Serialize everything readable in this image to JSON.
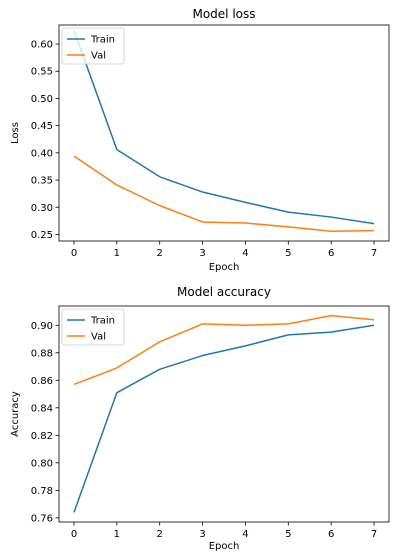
{
  "chart_data": [
    {
      "type": "line",
      "title": "Model loss",
      "xlabel": "Epoch",
      "ylabel": "Loss",
      "x": [
        0,
        1,
        2,
        3,
        4,
        5,
        6,
        7
      ],
      "xlim": [
        -0.35,
        7.35
      ],
      "ylim": [
        0.238,
        0.635
      ],
      "yticks": [
        "0.25",
        "0.30",
        "0.35",
        "0.40",
        "0.45",
        "0.50",
        "0.55",
        "0.60"
      ],
      "xticks": [
        "0",
        "1",
        "2",
        "3",
        "4",
        "5",
        "6",
        "7"
      ],
      "legend_position": "top-left",
      "grid": false,
      "series": [
        {
          "name": "Train",
          "color": "#1f77b4",
          "values": [
            0.625,
            0.406,
            0.356,
            0.328,
            0.309,
            0.291,
            0.282,
            0.27
          ]
        },
        {
          "name": "Val",
          "color": "#ff7f0e",
          "values": [
            0.394,
            0.341,
            0.303,
            0.273,
            0.271,
            0.264,
            0.256,
            0.257
          ]
        }
      ]
    },
    {
      "type": "line",
      "title": "Model accuracy",
      "xlabel": "Epoch",
      "ylabel": "Accuracy",
      "x": [
        0,
        1,
        2,
        3,
        4,
        5,
        6,
        7
      ],
      "xlim": [
        -0.35,
        7.35
      ],
      "ylim": [
        0.757,
        0.914
      ],
      "yticks": [
        "0.76",
        "0.78",
        "0.80",
        "0.82",
        "0.84",
        "0.86",
        "0.88",
        "0.90"
      ],
      "xticks": [
        "0",
        "1",
        "2",
        "3",
        "4",
        "5",
        "6",
        "7"
      ],
      "legend_position": "top-left",
      "grid": false,
      "series": [
        {
          "name": "Train",
          "color": "#1f77b4",
          "values": [
            0.764,
            0.851,
            0.868,
            0.878,
            0.885,
            0.893,
            0.895,
            0.9
          ]
        },
        {
          "name": "Val",
          "color": "#ff7f0e",
          "values": [
            0.857,
            0.869,
            0.888,
            0.901,
            0.9,
            0.901,
            0.907,
            0.904
          ]
        }
      ]
    }
  ]
}
